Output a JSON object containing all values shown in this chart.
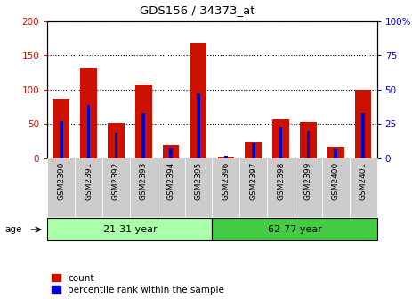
{
  "title": "GDS156 / 34373_at",
  "samples": [
    "GSM2390",
    "GSM2391",
    "GSM2392",
    "GSM2393",
    "GSM2394",
    "GSM2395",
    "GSM2396",
    "GSM2397",
    "GSM2398",
    "GSM2399",
    "GSM2400",
    "GSM2401"
  ],
  "count_values": [
    87,
    132,
    52,
    108,
    20,
    168,
    3,
    24,
    57,
    53,
    17,
    100
  ],
  "percentile_values": [
    27,
    39,
    19,
    33,
    8,
    47,
    2,
    11,
    23,
    20,
    7,
    33
  ],
  "groups": [
    {
      "label": "21-31 year",
      "start": 0,
      "end": 6,
      "color": "#aaffaa"
    },
    {
      "label": "62-77 year",
      "start": 6,
      "end": 12,
      "color": "#44cc44"
    }
  ],
  "bar_color": "#cc1100",
  "percentile_color": "#0000cc",
  "ylim_left": [
    0,
    200
  ],
  "ylim_right": [
    0,
    100
  ],
  "yticks_left": [
    0,
    50,
    100,
    150,
    200
  ],
  "yticks_right": [
    0,
    25,
    50,
    75,
    100
  ],
  "ytick_labels_right": [
    "0",
    "25",
    "50",
    "75",
    "100%"
  ],
  "ylabel_left_color": "#cc1100",
  "ylabel_right_color": "#0000cc",
  "age_label": "age",
  "legend_count_label": "count",
  "legend_percentile_label": "percentile rank within the sample",
  "background_color": "#ffffff",
  "xticklabel_bg": "#dddddd",
  "bar_width": 0.6,
  "blue_bar_width": 0.12
}
